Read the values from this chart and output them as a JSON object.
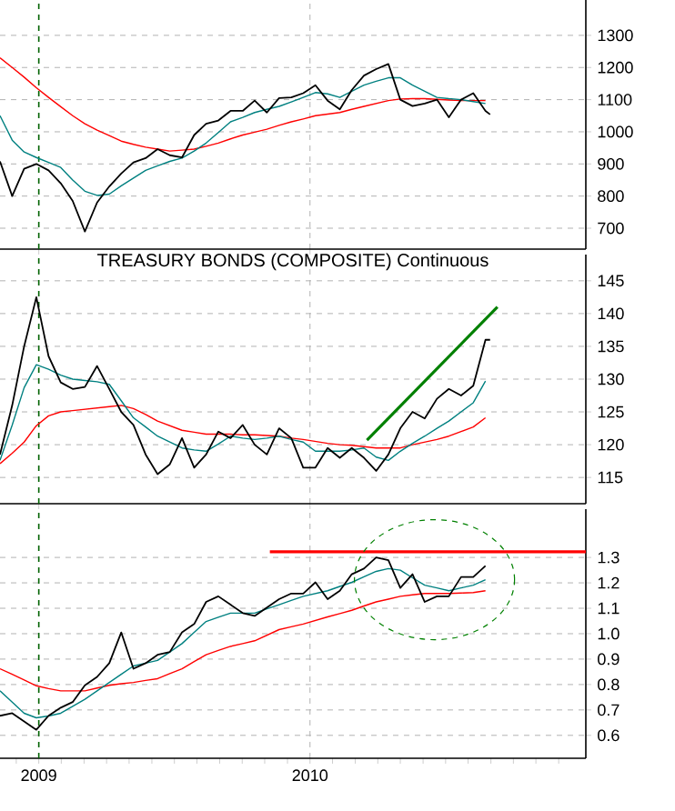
{
  "chart_data": [
    {
      "type": "line",
      "x": [
        2008.857,
        2008.902,
        2008.946,
        2008.991,
        2009.036,
        2009.081,
        2009.125,
        2009.17,
        2009.215,
        2009.26,
        2009.304,
        2009.349,
        2009.394,
        2009.438,
        2009.483,
        2009.528,
        2009.573,
        2009.617,
        2009.662,
        2009.707,
        2009.752,
        2009.796,
        2009.841,
        2009.886,
        2009.931,
        2009.975,
        2010.02,
        2010.065,
        2010.11,
        2010.154,
        2010.199,
        2010.244,
        2010.289,
        2010.333,
        2010.378,
        2010.423,
        2010.468,
        2010.512,
        2010.557,
        2010.602,
        2010.647,
        2010.664
      ],
      "series": [
        {
          "color": "#ff0000",
          "values": [
            1230,
            1200,
            1170,
            1137,
            1107,
            1078,
            1050,
            1025,
            1005,
            988,
            971,
            961,
            952,
            946,
            940,
            943,
            946,
            955,
            965,
            978,
            990,
            999,
            1008,
            1020,
            1031,
            1040,
            1050,
            1055,
            1060,
            1070,
            1079,
            1088,
            1097,
            1102,
            1103,
            1103,
            1101,
            1099,
            1097,
            1097,
            1097,
            null
          ]
        },
        {
          "color": "#008080",
          "values": [
            1050,
            974,
            937,
            920,
            905,
            889,
            850,
            815,
            802,
            806,
            832,
            856,
            880,
            894,
            908,
            918,
            940,
            965,
            998,
            1031,
            1045,
            1060,
            1070,
            1079,
            1093,
            1107,
            1122,
            1118,
            1107,
            1126,
            1145,
            1157,
            1168,
            1168,
            1145,
            1126,
            1107,
            1103,
            1100,
            1094,
            1088,
            null
          ]
        },
        {
          "color": "#000000",
          "values": [
            908,
            800,
            885,
            900,
            880,
            840,
            785,
            690,
            780,
            830,
            870,
            905,
            918,
            946,
            927,
            920,
            990,
            1025,
            1035,
            1065,
            1065,
            1097,
            1060,
            1105,
            1107,
            1120,
            1145,
            1097,
            1070,
            1130,
            1175,
            1195,
            1211,
            1100,
            1080,
            1088,
            1100,
            1045,
            1100,
            1120,
            1065,
            1054
          ]
        }
      ],
      "xlim": [
        2008.857,
        2011.017
      ],
      "ylim": [
        635,
        1410
      ],
      "yticks": [
        700,
        800,
        900,
        1000,
        1100,
        1200,
        1300
      ],
      "xticks": [
        2009,
        2010
      ],
      "grid": true,
      "tick_labels": "y",
      "ref_lines": [
        {
          "axis": "x",
          "value": 2009,
          "color": "#006400",
          "line_style": "dashed"
        }
      ]
    },
    {
      "type": "line",
      "title": "TREASURY BONDS (COMPOSITE) Continuous",
      "x": [
        2008.857,
        2008.902,
        2008.946,
        2008.991,
        2009.036,
        2009.081,
        2009.125,
        2009.17,
        2009.215,
        2009.26,
        2009.304,
        2009.349,
        2009.394,
        2009.438,
        2009.483,
        2009.528,
        2009.573,
        2009.617,
        2009.662,
        2009.707,
        2009.752,
        2009.796,
        2009.841,
        2009.886,
        2009.931,
        2009.975,
        2010.02,
        2010.065,
        2010.11,
        2010.154,
        2010.199,
        2010.244,
        2010.289,
        2010.333,
        2010.378,
        2010.423,
        2010.468,
        2010.512,
        2010.557,
        2010.602,
        2010.647,
        2010.664
      ],
      "series": [
        {
          "color": "#ff0000",
          "values": [
            117.1,
            118.7,
            120.4,
            122.9,
            124.4,
            125,
            125.2,
            125.4,
            125.6,
            125.8,
            126,
            125.5,
            124.6,
            123.6,
            122.9,
            122.2,
            121.9,
            121.6,
            121.6,
            121.6,
            121.5,
            121.5,
            121.4,
            121.3,
            121,
            120.8,
            120.5,
            120.2,
            120,
            119.9,
            119.7,
            119.5,
            119.5,
            119.5,
            120,
            120.4,
            120.8,
            121.3,
            122,
            122.7,
            124.1,
            null
          ]
        },
        {
          "color": "#008080",
          "values": [
            117.6,
            123,
            128.7,
            132.2,
            131.5,
            130.6,
            130,
            129.8,
            129.6,
            129.2,
            126.7,
            124.1,
            122.7,
            121.3,
            120.4,
            119.5,
            119.2,
            119,
            120.1,
            121.3,
            121,
            120.8,
            121,
            121.3,
            120.8,
            120.4,
            119,
            119,
            119,
            119.2,
            119.5,
            118.1,
            117.6,
            119,
            120.2,
            121.3,
            122.5,
            123.6,
            125,
            126.4,
            129.7,
            null
          ]
        },
        {
          "color": "#000000",
          "values": [
            118.5,
            126,
            135,
            142.5,
            133.5,
            129.5,
            128.5,
            128.8,
            132,
            128.5,
            125,
            123,
            118.5,
            115.5,
            117,
            121,
            116.5,
            118.5,
            122,
            121,
            123,
            120,
            118.5,
            122.5,
            121,
            116.5,
            116.5,
            119.5,
            118,
            119.5,
            118,
            116,
            118.5,
            122.5,
            125,
            124,
            127,
            128.5,
            127.5,
            129,
            136,
            136
          ]
        },
        {
          "color": "#008000",
          "x": [
            2010.21,
            2010.691
          ],
          "values": [
            120.7,
            141
          ]
        }
      ],
      "xlim": [
        2008.857,
        2011.017
      ],
      "ylim": [
        111,
        149
      ],
      "yticks": [
        115,
        120,
        125,
        130,
        135,
        140,
        145
      ],
      "xticks": [
        2009,
        2010
      ],
      "grid": true,
      "tick_labels": "y",
      "ref_lines": [
        {
          "axis": "x",
          "value": 2009,
          "color": "#006400",
          "line_style": "dashed"
        }
      ]
    },
    {
      "type": "line",
      "x": [
        2008.857,
        2008.902,
        2008.946,
        2008.991,
        2009.036,
        2009.081,
        2009.125,
        2009.17,
        2009.215,
        2009.26,
        2009.304,
        2009.349,
        2009.394,
        2009.438,
        2009.483,
        2009.528,
        2009.573,
        2009.617,
        2009.662,
        2009.707,
        2009.752,
        2009.796,
        2009.841,
        2009.886,
        2009.931,
        2009.975,
        2010.02,
        2010.065,
        2010.11,
        2010.154,
        2010.199,
        2010.244,
        2010.289,
        2010.333,
        2010.378,
        2010.423,
        2010.468,
        2010.512,
        2010.557,
        2010.602,
        2010.647
      ],
      "series": [
        {
          "color": "#ff0000",
          "values": [
            0.862,
            0.84,
            0.818,
            0.795,
            0.784,
            0.775,
            0.775,
            0.775,
            0.786,
            0.797,
            0.803,
            0.808,
            0.816,
            0.823,
            0.843,
            0.862,
            0.89,
            0.917,
            0.934,
            0.95,
            0.961,
            0.972,
            0.994,
            1.016,
            1.027,
            1.038,
            1.052,
            1.066,
            1.079,
            1.092,
            1.109,
            1.125,
            1.136,
            1.147,
            1.153,
            1.158,
            1.158,
            1.158,
            1.16,
            1.162,
            1.169
          ]
        },
        {
          "color": "#008080",
          "values": [
            0.775,
            0.731,
            0.687,
            0.669,
            0.676,
            0.687,
            0.714,
            0.742,
            0.775,
            0.808,
            0.84,
            0.873,
            0.884,
            0.895,
            0.928,
            0.961,
            1.005,
            1.048,
            1.065,
            1.081,
            1.081,
            1.081,
            1.098,
            1.114,
            1.131,
            1.147,
            1.158,
            1.169,
            1.186,
            1.202,
            1.224,
            1.245,
            1.256,
            1.25,
            1.22,
            1.191,
            1.18,
            1.169,
            1.18,
            1.191,
            1.212
          ]
        },
        {
          "color": "#000000",
          "values": [
            0.677,
            0.687,
            0.655,
            0.622,
            0.677,
            0.709,
            0.731,
            0.797,
            0.83,
            0.884,
            1.005,
            0.862,
            0.884,
            0.917,
            0.928,
            1.005,
            1.038,
            1.125,
            1.147,
            1.114,
            1.081,
            1.07,
            1.103,
            1.136,
            1.158,
            1.158,
            1.202,
            1.136,
            1.169,
            1.234,
            1.256,
            1.3,
            1.289,
            1.18,
            1.234,
            1.125,
            1.147,
            1.147,
            1.223,
            1.223,
            1.267
          ]
        },
        {
          "color": "#ff0000",
          "x": [
            2009.852,
            2011.017
          ],
          "values": [
            1.322,
            1.322
          ]
        }
      ],
      "xlim": [
        2008.857,
        2011.017
      ],
      "ylim": [
        0.51,
        1.49
      ],
      "yticks": [
        0.6,
        0.7,
        0.8,
        0.9,
        {
          "value": 1.0,
          "label": "1.0"
        },
        1.1,
        1.2,
        1.3
      ],
      "xticks": [
        {
          "value": 2008.917,
          "label": null
        },
        2009,
        {
          "value": 2009.083,
          "label": null
        },
        {
          "value": 2009.167,
          "label": null
        },
        {
          "value": 2009.25,
          "label": null
        },
        {
          "value": 2009.333,
          "label": null
        },
        {
          "value": 2009.417,
          "label": null
        },
        {
          "value": 2009.5,
          "label": null
        },
        {
          "value": 2009.583,
          "label": null
        },
        {
          "value": 2009.667,
          "label": null
        },
        {
          "value": 2009.75,
          "label": null
        },
        {
          "value": 2009.833,
          "label": null
        },
        {
          "value": 2009.917,
          "label": null
        },
        2010,
        {
          "value": 2010.083,
          "label": null
        },
        {
          "value": 2010.167,
          "label": null
        },
        {
          "value": 2010.25,
          "label": null
        },
        {
          "value": 2010.333,
          "label": null
        },
        {
          "value": 2010.417,
          "label": null
        },
        {
          "value": 2010.5,
          "label": null
        },
        {
          "value": 2010.583,
          "label": null
        },
        {
          "value": 2010.667,
          "label": null
        },
        {
          "value": 2010.75,
          "label": null
        },
        {
          "value": 2010.833,
          "label": null
        },
        {
          "value": 2010.917,
          "label": null
        }
      ],
      "grid": true,
      "ref_lines": [
        {
          "axis": "x",
          "value": 2009,
          "color": "#006400",
          "line_style": "dashed"
        }
      ]
    }
  ]
}
